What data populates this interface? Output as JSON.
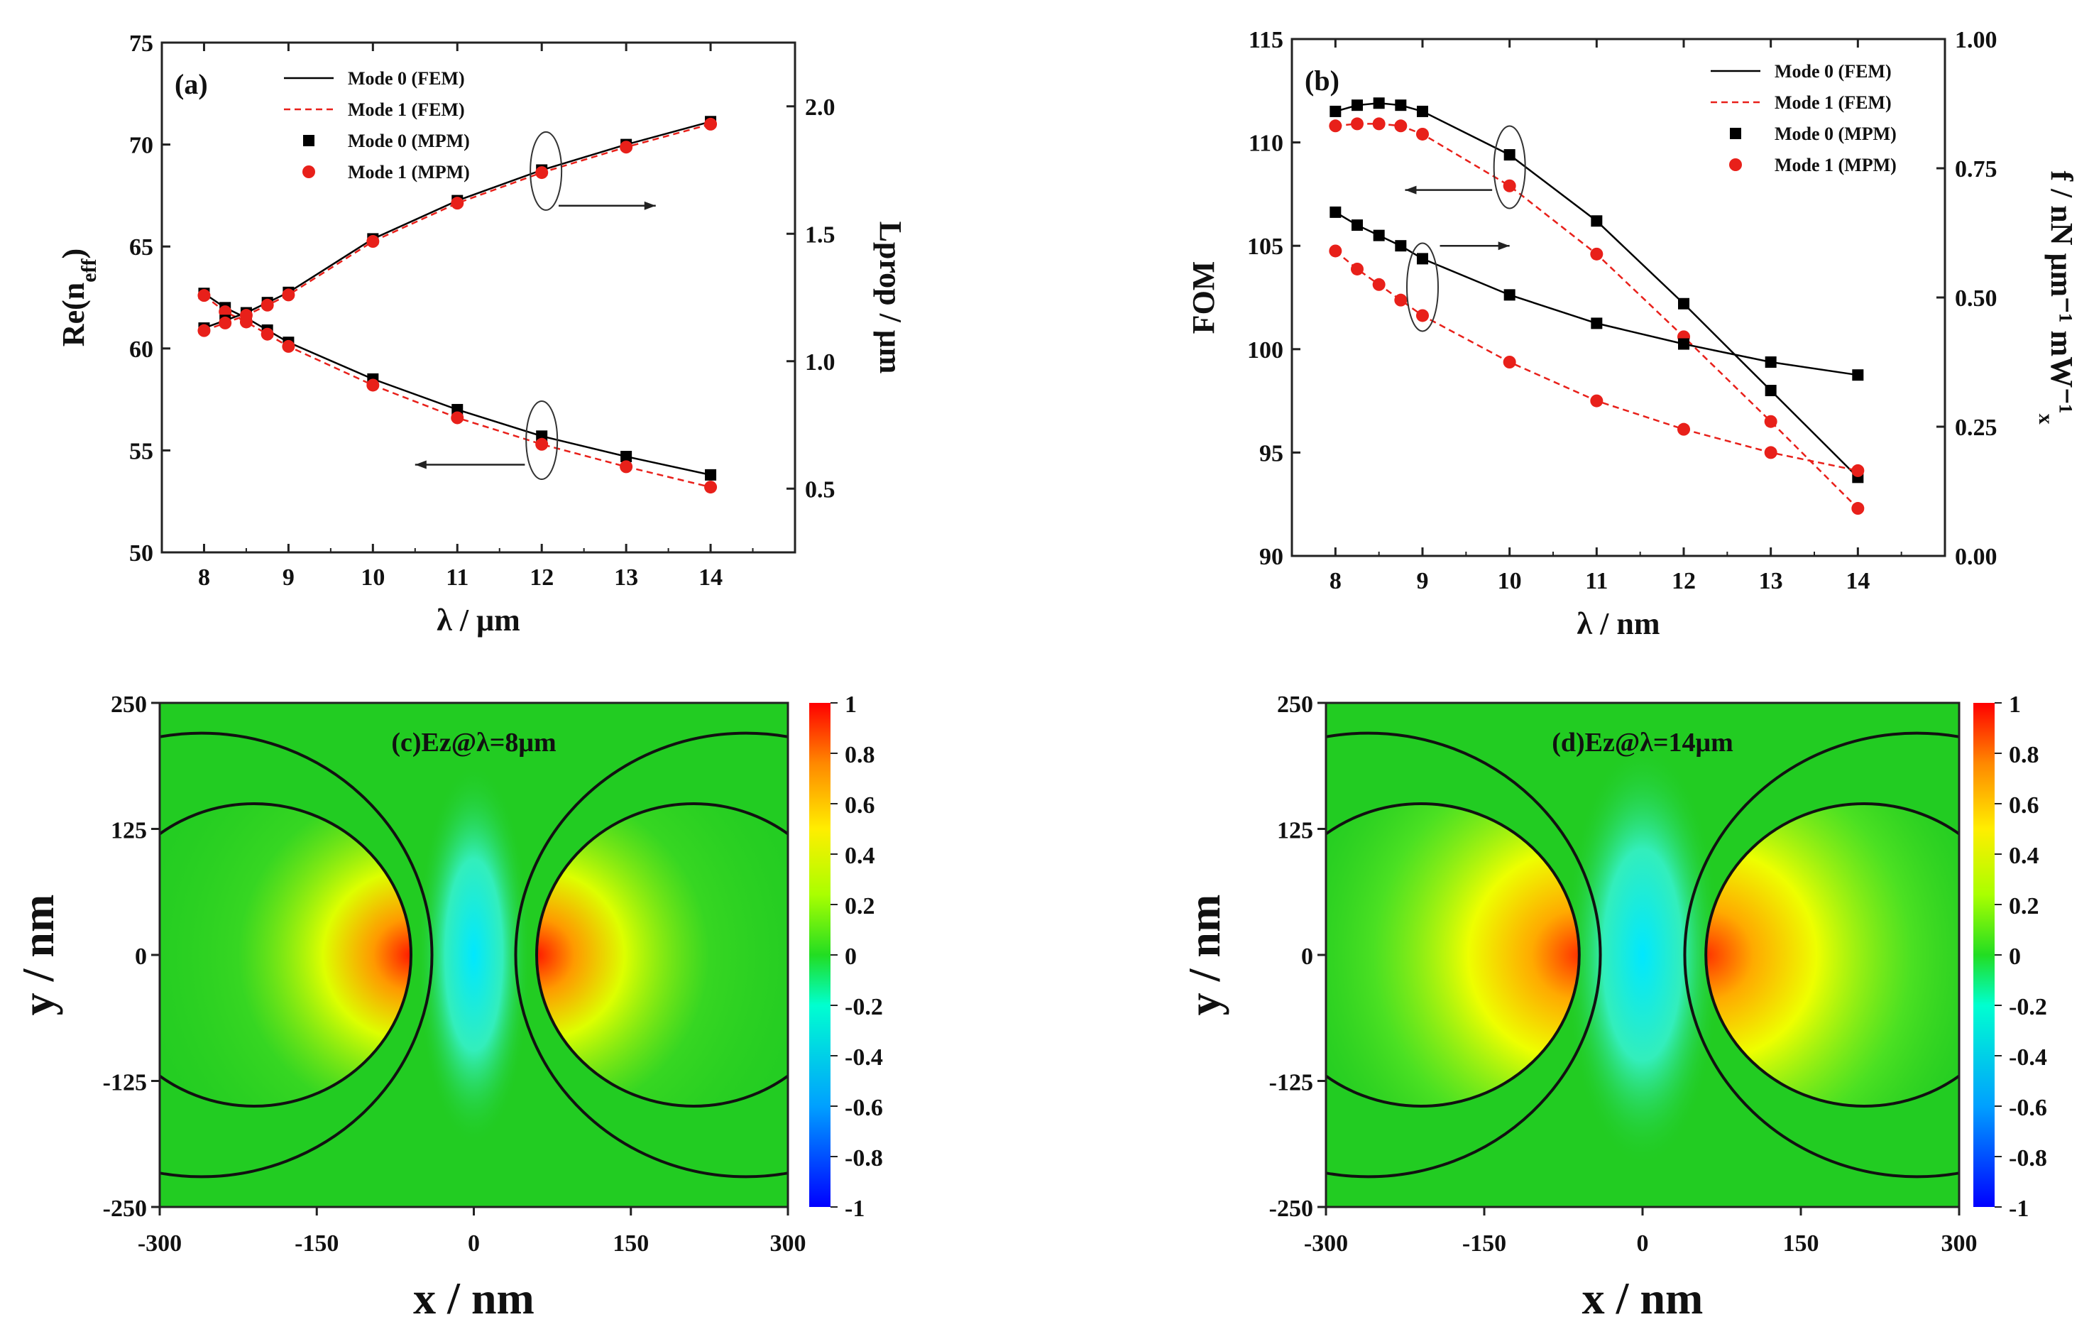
{
  "chart_data": [
    {
      "type": "line",
      "panel_label": "(a)",
      "xlabel": "λ / μm",
      "ylabel": "Re(n",
      "ylabel_sub": "eff",
      "ylabel_close": ")",
      "y2label": "Lprop / μm",
      "xlim": [
        7.5,
        15
      ],
      "ylim": [
        50,
        75
      ],
      "y2lim": [
        0.25,
        2.25
      ],
      "x_ticks": [
        "8",
        "9",
        "10",
        "11",
        "12",
        "13",
        "14"
      ],
      "x_tick_values": [
        8,
        9,
        10,
        11,
        12,
        13,
        14
      ],
      "y_ticks": [
        "50",
        "55",
        "60",
        "65",
        "70",
        "75"
      ],
      "y_tick_values": [
        50,
        55,
        60,
        65,
        70,
        75
      ],
      "y2_ticks": [
        "0.5",
        "1.0",
        "1.5",
        "2.0"
      ],
      "y2_tick_values": [
        0.5,
        1.0,
        1.5,
        2.0
      ],
      "legend": [
        "Mode 0 (FEM)",
        "Mode 1 (FEM)",
        "Mode 0 (MPM)",
        "Mode 1 (MPM)"
      ],
      "x": [
        8,
        8.25,
        8.5,
        8.75,
        9,
        10,
        11,
        12,
        13,
        14
      ],
      "series": [
        {
          "name": "Mode 0 Re(neff)",
          "axis": "left",
          "values": [
            62.7,
            62.0,
            61.5,
            60.9,
            60.3,
            58.5,
            57.0,
            55.7,
            54.7,
            53.8
          ]
        },
        {
          "name": "Mode 1 Re(neff)",
          "axis": "left",
          "values": [
            62.6,
            61.8,
            61.3,
            60.7,
            60.1,
            58.2,
            56.6,
            55.3,
            54.2,
            53.2
          ]
        },
        {
          "name": "Mode 0 Lprop",
          "axis": "right",
          "values": [
            1.13,
            1.16,
            1.19,
            1.23,
            1.27,
            1.48,
            1.63,
            1.75,
            1.85,
            1.94
          ]
        },
        {
          "name": "Mode 1 Lprop",
          "axis": "right",
          "values": [
            1.12,
            1.15,
            1.18,
            1.22,
            1.26,
            1.47,
            1.62,
            1.74,
            1.84,
            1.93
          ]
        }
      ]
    },
    {
      "type": "line",
      "panel_label": "(b)",
      "xlabel": "λ / nm",
      "ylabel": "FOM",
      "y2label": "f / nN μm⁻¹ mW⁻¹",
      "y2label_sub": "x",
      "xlim": [
        7.5,
        15
      ],
      "ylim": [
        90,
        115
      ],
      "y2lim": [
        0,
        1
      ],
      "x_ticks": [
        "8",
        "9",
        "10",
        "11",
        "12",
        "13",
        "14"
      ],
      "x_tick_values": [
        8,
        9,
        10,
        11,
        12,
        13,
        14
      ],
      "y_ticks": [
        "90",
        "95",
        "100",
        "105",
        "110",
        "115"
      ],
      "y_tick_values": [
        90,
        95,
        100,
        105,
        110,
        115
      ],
      "y2_ticks": [
        "0.00",
        "0.25",
        "0.50",
        "0.75",
        "1.00"
      ],
      "y2_tick_values": [
        0,
        0.25,
        0.5,
        0.75,
        1.0
      ],
      "legend": [
        "Mode 0 (FEM)",
        "Mode 1 (FEM)",
        "Mode 0 (MPM)",
        "Mode 1 (MPM)"
      ],
      "x": [
        8,
        8.25,
        8.5,
        8.75,
        9,
        10,
        11,
        12,
        13,
        14
      ],
      "series": [
        {
          "name": "Mode 0 FOM",
          "axis": "left",
          "values": [
            111.5,
            111.8,
            111.9,
            111.8,
            111.5,
            109.4,
            106.2,
            102.2,
            98.0,
            93.8
          ]
        },
        {
          "name": "Mode 1 FOM",
          "axis": "left",
          "values": [
            110.8,
            110.9,
            110.9,
            110.8,
            110.4,
            107.9,
            104.6,
            100.6,
            96.5,
            92.3
          ]
        },
        {
          "name": "Mode 0 fx",
          "axis": "right",
          "values": [
            0.665,
            0.64,
            0.62,
            0.6,
            0.575,
            0.505,
            0.45,
            0.41,
            0.375,
            0.35
          ]
        },
        {
          "name": "Mode 1 fx",
          "axis": "right",
          "values": [
            0.59,
            0.555,
            0.525,
            0.495,
            0.465,
            0.375,
            0.3,
            0.245,
            0.2,
            0.165
          ]
        }
      ]
    },
    {
      "type": "heatmap",
      "panel_label": "(c)Ez@λ=8μm",
      "xlabel": "x / nm",
      "ylabel": "y / nm",
      "xlim": [
        -300,
        300
      ],
      "ylim": [
        -250,
        250
      ],
      "x_ticks": [
        "-300",
        "-150",
        "0",
        "150",
        "300"
      ],
      "x_tick_values": [
        -300,
        -150,
        0,
        150,
        300
      ],
      "y_ticks": [
        "-250",
        "-125",
        "0",
        "125",
        "250"
      ],
      "y_tick_values": [
        -250,
        -125,
        0,
        125,
        250
      ],
      "colorbar_ticks": [
        "-1",
        "-0.8",
        "-0.6",
        "-0.4",
        "-0.2",
        "0",
        "0.2",
        "0.4",
        "0.6",
        "0.8",
        "1"
      ],
      "colorbar_values": [
        -1,
        -0.8,
        -0.6,
        -0.4,
        -0.2,
        0,
        0.2,
        0.4,
        0.6,
        0.8,
        1
      ],
      "circles": [
        {
          "cx": -210,
          "cy": 0,
          "r": 150
        },
        {
          "cx": 210,
          "cy": 0,
          "r": 150
        },
        {
          "cx": -260,
          "cy": 0,
          "r": 220
        },
        {
          "cx": 260,
          "cy": 0,
          "r": 220
        }
      ]
    },
    {
      "type": "heatmap",
      "panel_label": "(d)Ez@λ=14μm",
      "xlabel": "x / nm",
      "ylabel": "y / nm",
      "xlim": [
        -300,
        300
      ],
      "ylim": [
        -250,
        250
      ],
      "x_ticks": [
        "-300",
        "-150",
        "0",
        "150",
        "300"
      ],
      "x_tick_values": [
        -300,
        -150,
        0,
        150,
        300
      ],
      "y_ticks": [
        "-250",
        "-125",
        "0",
        "125",
        "250"
      ],
      "y_tick_values": [
        -250,
        -125,
        0,
        125,
        250
      ],
      "colorbar_ticks": [
        "-1",
        "-0.8",
        "-0.6",
        "-0.4",
        "-0.2",
        "0",
        "0.2",
        "0.4",
        "0.6",
        "0.8",
        "1"
      ],
      "colorbar_values": [
        -1,
        -0.8,
        -0.6,
        -0.4,
        -0.2,
        0,
        0.2,
        0.4,
        0.6,
        0.8,
        1
      ],
      "circles": [
        {
          "cx": -210,
          "cy": 0,
          "r": 150
        },
        {
          "cx": 210,
          "cy": 0,
          "r": 150
        },
        {
          "cx": -260,
          "cy": 0,
          "r": 220
        },
        {
          "cx": 260,
          "cy": 0,
          "r": 220
        }
      ]
    }
  ],
  "colors": {
    "mode0": "#000000",
    "mode1": "#e8201a",
    "field_zero": "#22cc22"
  }
}
